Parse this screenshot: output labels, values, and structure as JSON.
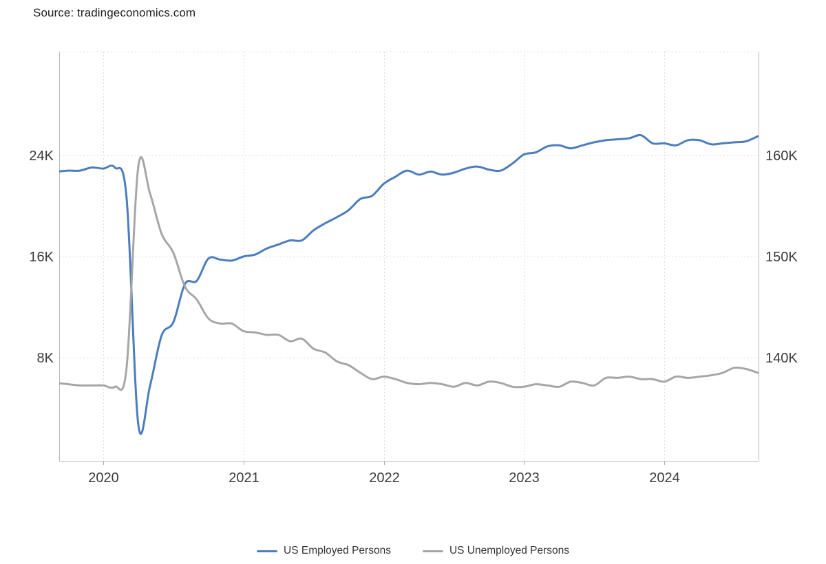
{
  "source": "Source: tradingeconomics.com",
  "legend": {
    "items": [
      {
        "label": "US Employed Persons",
        "color": "#4b7dbd"
      },
      {
        "label": "US Unemployed Persons",
        "color": "#a6a6a6"
      }
    ]
  },
  "chart_data": {
    "type": "line",
    "x_start": "2019-09",
    "x_interval": "monthly",
    "x_tick_labels": [
      "2020",
      "2021",
      "2022",
      "2023",
      "2024"
    ],
    "x_tick_month_indices": [
      4,
      16,
      28,
      40,
      52
    ],
    "grid": "dotted",
    "legend_position": "bottom-center",
    "left_axis": {
      "series": "US Unemployed Persons",
      "tick_labels": [
        "24K",
        "16K",
        "8K"
      ],
      "tick_values": [
        24,
        16,
        8
      ],
      "unit": "K persons (as labeled)"
    },
    "right_axis": {
      "series": "US Employed Persons",
      "tick_labels": [
        "160K",
        "150K",
        "140K"
      ],
      "tick_values": [
        160,
        150,
        140
      ],
      "unit": "K persons (as labeled)"
    },
    "series": [
      {
        "name": "US Employed Persons",
        "axis": "right",
        "color": "#4b7dbd",
        "values": [
          158.4,
          158.5,
          158.5,
          158.8,
          158.7,
          158.8,
          155.8,
          133.4,
          137.2,
          142.2,
          143.5,
          147.3,
          147.6,
          149.8,
          149.7,
          149.6,
          150.0,
          150.2,
          150.8,
          151.2,
          151.6,
          151.6,
          152.6,
          153.3,
          153.9,
          154.6,
          155.7,
          156.0,
          157.2,
          157.9,
          158.5,
          158.1,
          158.4,
          158.1,
          158.3,
          158.7,
          158.9,
          158.6,
          158.5,
          159.2,
          160.1,
          160.3,
          160.9,
          161.0,
          160.7,
          161.0,
          161.3,
          161.5,
          161.6,
          161.7,
          162.0,
          161.2,
          161.2,
          161.0,
          161.5,
          161.5,
          161.1,
          161.2,
          161.3,
          161.4,
          161.9
        ]
      },
      {
        "name": "US Unemployed Persons",
        "axis": "left",
        "color": "#a6a6a6",
        "values": [
          6.0,
          5.9,
          5.8,
          5.8,
          5.8,
          5.7,
          7.2,
          23.1,
          21.0,
          17.8,
          16.3,
          13.6,
          12.6,
          11.1,
          10.7,
          10.7,
          10.1,
          10.0,
          9.8,
          9.8,
          9.3,
          9.5,
          8.7,
          8.4,
          7.7,
          7.4,
          6.8,
          6.3,
          6.5,
          6.3,
          6.0,
          5.9,
          6.0,
          5.9,
          5.7,
          6.0,
          5.8,
          6.1,
          6.0,
          5.7,
          5.7,
          5.9,
          5.8,
          5.7,
          6.1,
          6.0,
          5.8,
          6.4,
          6.4,
          6.5,
          6.3,
          6.3,
          6.1,
          6.5,
          6.4,
          6.5,
          6.6,
          6.8,
          7.2,
          7.1,
          6.8
        ]
      }
    ]
  }
}
